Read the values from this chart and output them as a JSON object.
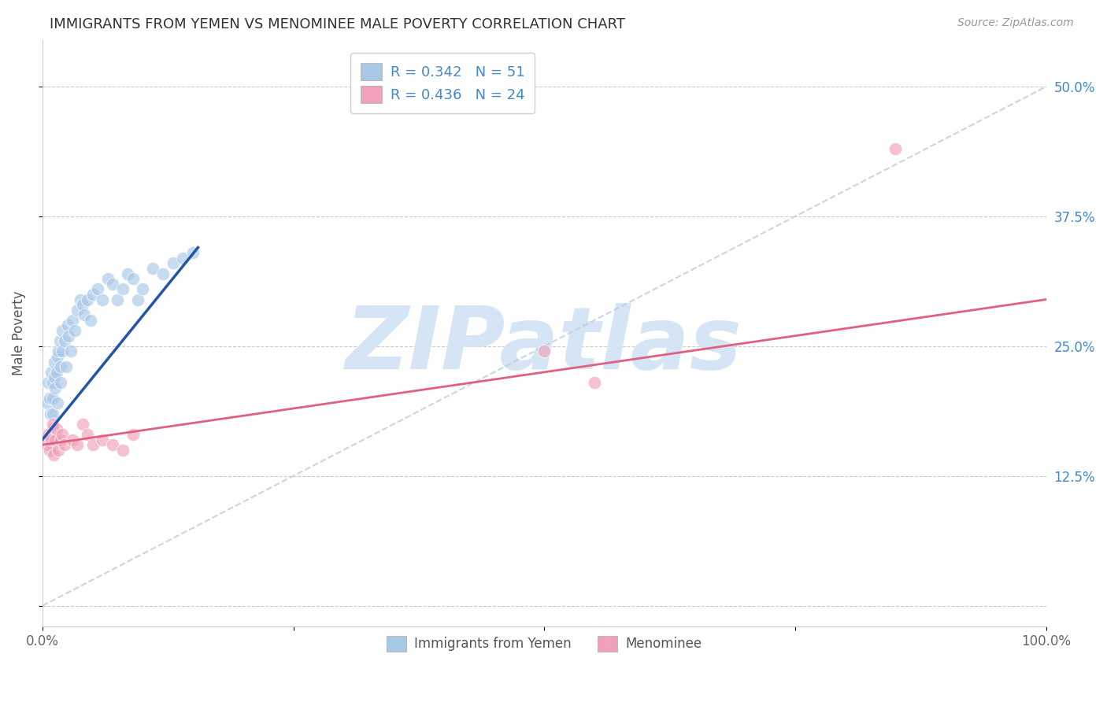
{
  "title": "IMMIGRANTS FROM YEMEN VS MENOMINEE MALE POVERTY CORRELATION CHART",
  "source": "Source: ZipAtlas.com",
  "ylabel": "Male Poverty",
  "xlim": [
    0.0,
    1.0
  ],
  "ylim": [
    -0.02,
    0.545
  ],
  "x_ticks": [
    0.0,
    0.25,
    0.5,
    0.75,
    1.0
  ],
  "x_tick_labels": [
    "0.0%",
    "",
    "",
    "",
    "100.0%"
  ],
  "y_ticks": [
    0.0,
    0.125,
    0.25,
    0.375,
    0.5
  ],
  "y_tick_labels_right": [
    "",
    "12.5%",
    "25.0%",
    "37.5%",
    "50.0%"
  ],
  "legend_line1": "R = 0.342   N = 51",
  "legend_line2": "R = 0.436   N = 24",
  "blue_color": "#A8C8E8",
  "pink_color": "#F0A0B8",
  "blue_line_color": "#2255AA",
  "pink_line_color": "#E06080",
  "dashed_line_color": "#BBCCDD",
  "watermark": "ZIPatlas",
  "watermark_color": "#D5E5F5",
  "tick_label_color": "#4488CC",
  "background_color": "#FFFFFF",
  "title_color": "#333333",
  "source_color": "#999999",
  "yemen_x": [
    0.005,
    0.006,
    0.007,
    0.008,
    0.009,
    0.01,
    0.01,
    0.01,
    0.01,
    0.01,
    0.012,
    0.012,
    0.013,
    0.014,
    0.015,
    0.015,
    0.016,
    0.017,
    0.018,
    0.018,
    0.02,
    0.02,
    0.022,
    0.024,
    0.025,
    0.026,
    0.028,
    0.03,
    0.032,
    0.035,
    0.038,
    0.04,
    0.042,
    0.045,
    0.048,
    0.05,
    0.055,
    0.06,
    0.065,
    0.07,
    0.075,
    0.08,
    0.085,
    0.09,
    0.095,
    0.1,
    0.11,
    0.12,
    0.13,
    0.14,
    0.15
  ],
  "yemen_y": [
    0.195,
    0.215,
    0.2,
    0.185,
    0.225,
    0.215,
    0.2,
    0.185,
    0.17,
    0.155,
    0.235,
    0.22,
    0.21,
    0.225,
    0.24,
    0.195,
    0.245,
    0.255,
    0.23,
    0.215,
    0.265,
    0.245,
    0.255,
    0.23,
    0.27,
    0.26,
    0.245,
    0.275,
    0.265,
    0.285,
    0.295,
    0.29,
    0.28,
    0.295,
    0.275,
    0.3,
    0.305,
    0.295,
    0.315,
    0.31,
    0.295,
    0.305,
    0.32,
    0.315,
    0.295,
    0.305,
    0.325,
    0.32,
    0.33,
    0.335,
    0.34
  ],
  "menominee_x": [
    0.004,
    0.006,
    0.007,
    0.009,
    0.01,
    0.011,
    0.013,
    0.014,
    0.016,
    0.018,
    0.02,
    0.022,
    0.03,
    0.035,
    0.04,
    0.045,
    0.05,
    0.06,
    0.07,
    0.08,
    0.09,
    0.5,
    0.55,
    0.85
  ],
  "menominee_y": [
    0.155,
    0.165,
    0.15,
    0.16,
    0.175,
    0.145,
    0.16,
    0.17,
    0.15,
    0.16,
    0.165,
    0.155,
    0.16,
    0.155,
    0.175,
    0.165,
    0.155,
    0.16,
    0.155,
    0.15,
    0.165,
    0.245,
    0.215,
    0.44
  ],
  "blue_line_x": [
    0.0,
    0.155
  ],
  "blue_line_y_start": 0.16,
  "blue_line_y_end": 0.345,
  "pink_line_x": [
    0.0,
    1.0
  ],
  "pink_line_y_start": 0.155,
  "pink_line_y_end": 0.295,
  "dashed_line_x": [
    0.0,
    1.0
  ],
  "dashed_line_y": [
    0.0,
    0.5
  ]
}
